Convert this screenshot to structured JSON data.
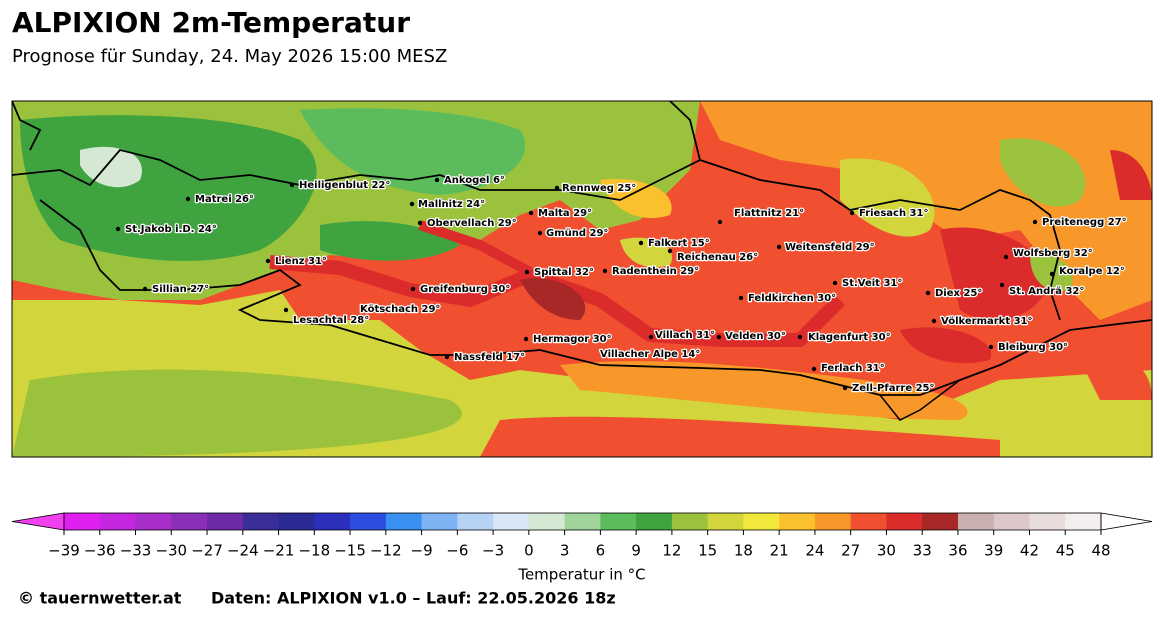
{
  "header": {
    "title": "ALPIXION 2m-Temperatur",
    "subtitle": "Prognose für Sunday, 24. May 2026 15:00 MESZ"
  },
  "map": {
    "cities": [
      "Matrei 26°",
      "Heiligenblut 22°",
      "Ankogel 6°",
      "Rennweg 25°",
      "Mallnitz 24°",
      "Obervellach 29°",
      "Malta 29°",
      "Gmünd 29°",
      "Flattnitz 21°",
      "Friesach 31°",
      "Preitenegg 27°",
      "St.Jakob i.D. 24°",
      "Falkert 15°",
      "Reichenau 26°",
      "Weitensfeld 29°",
      "Wolfsberg 32°",
      "Lienz 31°",
      "Spittal 32°",
      "Radenthein 29°",
      "Koralpe 12°",
      "St.Veit 31°",
      "Sillian 27°",
      "Greifenburg 30°",
      "St. Andrä 32°",
      "Diex 25°",
      "Feldkirchen 30°",
      "Kötschach 29°",
      "Lesachtal 28°",
      "Völkermarkt 31°",
      "Villach 31°",
      "Velden 30°",
      "Klagenfurt 30°",
      "Hermagor 30°",
      "Bleiburg 30°",
      "Villacher Alpe 14°",
      "Nassfeld 17°",
      "Ferlach 31°",
      "Zell-Pfarre 25°"
    ]
  },
  "colorbar": {
    "label": "Temperatur in °C",
    "ticks": [
      {
        "value": -39,
        "label": "−39"
      },
      {
        "value": -36,
        "label": "−36"
      },
      {
        "value": -33,
        "label": "−33"
      },
      {
        "value": -30,
        "label": "−30"
      },
      {
        "value": -27,
        "label": "−27"
      },
      {
        "value": -24,
        "label": "−24"
      },
      {
        "value": -21,
        "label": "−21"
      },
      {
        "value": -18,
        "label": "−18"
      },
      {
        "value": -15,
        "label": "−15"
      },
      {
        "value": -12,
        "label": "−12"
      },
      {
        "value": -9,
        "label": "−9"
      },
      {
        "value": -6,
        "label": "−6"
      },
      {
        "value": -3,
        "label": "−3"
      },
      0,
      3,
      6,
      9,
      12,
      15,
      18,
      21,
      24,
      27,
      30,
      33,
      36,
      39,
      42,
      45,
      48
    ],
    "colors": [
      "#e020f0",
      "#c526e0",
      "#a82fc9",
      "#8c2fb8",
      "#6e2aa8",
      "#3b2d9a",
      "#2a2a95",
      "#2c2fbc",
      "#2c4de0",
      "#3a90f0",
      "#7db3f2",
      "#b6d3f5",
      "#d9e6f5",
      "#d4e8d4",
      "#9ed49a",
      "#5cbc5c",
      "#3fa33f",
      "#9bc23c",
      "#d2d53c",
      "#f2e83c",
      "#fbc02d",
      "#f8982a",
      "#f05030",
      "#dc2b2b",
      "#a82828",
      "#c8b0b0",
      "#dcc8c8",
      "#e8dcdc",
      "#f4eeee"
    ],
    "extend_low_color": "#f040f0",
    "extend_high_color": "#ffffff"
  },
  "footer": {
    "credit": "© tauernwetter.at",
    "source": "Daten: ALPIXION v1.0 – Lauf: 22.05.2026 18z"
  }
}
